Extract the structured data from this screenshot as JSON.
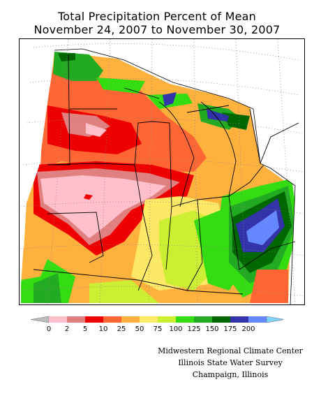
{
  "title": "Total Precipitation Percent of Mean",
  "date_range": "November 24, 2007 to November 30, 2007",
  "legend": {
    "labels": [
      "0",
      "2",
      "5",
      "10",
      "25",
      "50",
      "75",
      "100",
      "125",
      "150",
      "175",
      "200"
    ],
    "low_arrow_color": "#bcbcbc",
    "high_arrow_color": "#7fd4ff",
    "colors": [
      "#ffc0cb",
      "#e08080",
      "#ee0000",
      "#ff6633",
      "#ffb13d",
      "#ffe866",
      "#ccee33",
      "#33dd11",
      "#22aa22",
      "#006600",
      "#3333aa",
      "#6688ff"
    ]
  },
  "credits": {
    "line1": "Midwestern Regional Climate Center",
    "line2": "Illinois State Water Survey",
    "line3": "Champaign, Illinois"
  }
}
